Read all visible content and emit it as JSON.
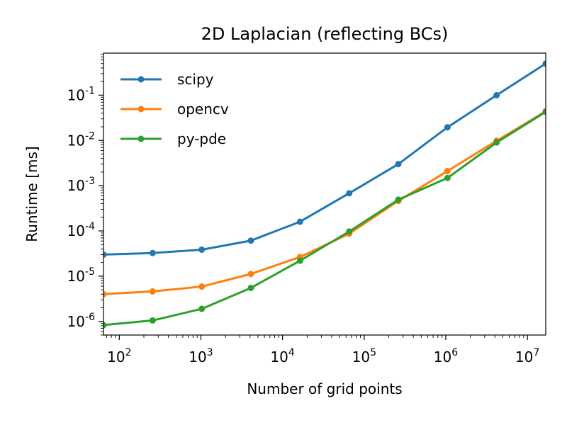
{
  "chart_data": {
    "type": "line",
    "title": "2D Laplacian (reflecting BCs)",
    "xlabel": "Number of grid points",
    "ylabel": "Runtime [ms]",
    "xscale": "log",
    "yscale": "log",
    "xlim": [
      64,
      16777216
    ],
    "ylim": [
      5e-07,
      0.85
    ],
    "x": [
      64,
      256,
      1024,
      4096,
      16384,
      65536,
      262144,
      1048576,
      4194304,
      16777216
    ],
    "x_ticks": [
      {
        "base": "10",
        "exp": "2",
        "value": 100
      },
      {
        "base": "10",
        "exp": "3",
        "value": 1000
      },
      {
        "base": "10",
        "exp": "4",
        "value": 10000
      },
      {
        "base": "10",
        "exp": "5",
        "value": 100000
      },
      {
        "base": "10",
        "exp": "6",
        "value": 1000000
      },
      {
        "base": "10",
        "exp": "7",
        "value": 10000000
      }
    ],
    "y_ticks": [
      {
        "base": "10",
        "exp": "-6",
        "value": 1e-06
      },
      {
        "base": "10",
        "exp": "-5",
        "value": 1e-05
      },
      {
        "base": "10",
        "exp": "-4",
        "value": 0.0001
      },
      {
        "base": "10",
        "exp": "-3",
        "value": 0.001
      },
      {
        "base": "10",
        "exp": "-2",
        "value": 0.01
      },
      {
        "base": "10",
        "exp": "-1",
        "value": 0.1
      }
    ],
    "legend_position": "top-left",
    "grid": false,
    "series": [
      {
        "name": "scipy",
        "color": "#1f77b4",
        "values": [
          3e-05,
          3.25e-05,
          3.85e-05,
          6.1e-05,
          0.00016,
          0.00068,
          0.003,
          0.0195,
          0.1,
          0.5
        ]
      },
      {
        "name": "opencv",
        "color": "#ff7f0e",
        "values": [
          4e-06,
          4.6e-06,
          5.9e-06,
          1.12e-05,
          2.65e-05,
          8.7e-05,
          0.00046,
          0.0021,
          0.0098,
          0.044
        ]
      },
      {
        "name": "py-pde",
        "color": "#2ca02c",
        "values": [
          8.3e-07,
          1.05e-06,
          1.9e-06,
          5.5e-06,
          2.2e-05,
          9.7e-05,
          0.00049,
          0.00148,
          0.009,
          0.043
        ]
      }
    ]
  }
}
